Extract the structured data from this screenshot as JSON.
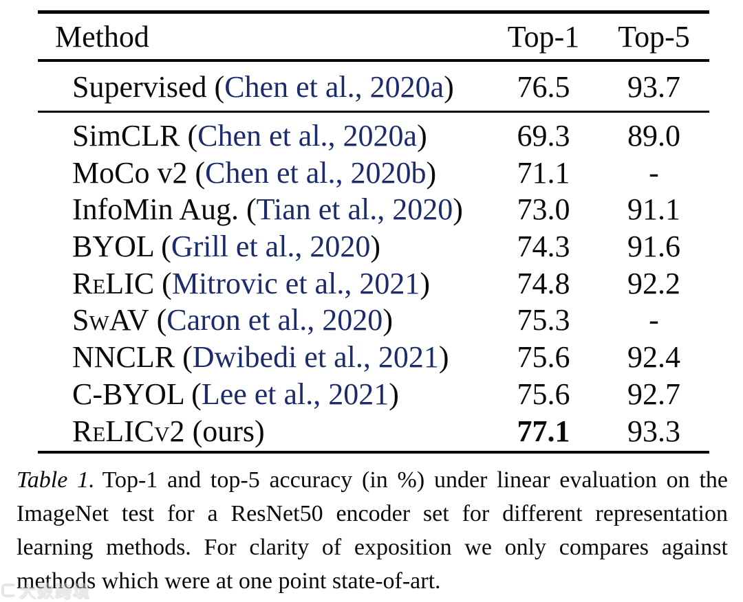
{
  "colors": {
    "text": "#0a0a0a",
    "citation": "#1c2b6b",
    "rule": "#000000",
    "background": "#ffffff",
    "watermark": "#cfd1d4"
  },
  "table": {
    "headers": {
      "method": "Method",
      "top1": "Top-1",
      "top5": "Top-5"
    },
    "punctuation": {
      "cite_open": "(",
      "cite_close": ")",
      "space": " "
    },
    "supervised_row": {
      "method": "Supervised",
      "smallcaps": false,
      "cite": "Chen et al., 2020a",
      "note": "",
      "top1": "76.5",
      "top1_bold": false,
      "top5": "93.7"
    },
    "rows": [
      {
        "method": "SimCLR",
        "smallcaps": false,
        "cite": "Chen et al., 2020a",
        "note": "",
        "top1": "69.3",
        "top1_bold": false,
        "top5": "89.0"
      },
      {
        "method": "MoCo v2",
        "smallcaps": false,
        "cite": "Chen et al., 2020b",
        "note": "",
        "top1": "71.1",
        "top1_bold": false,
        "top5": "-"
      },
      {
        "method": "InfoMin Aug.",
        "smallcaps": false,
        "cite": "Tian et al., 2020",
        "note": "",
        "top1": "73.0",
        "top1_bold": false,
        "top5": "91.1"
      },
      {
        "method": "BYOL",
        "smallcaps": false,
        "cite": "Grill et al., 2020",
        "note": "",
        "top1": "74.3",
        "top1_bold": false,
        "top5": "91.6"
      },
      {
        "method": "ReLIC",
        "smallcaps": true,
        "cite": "Mitrovic et al., 2021",
        "note": "",
        "top1": "74.8",
        "top1_bold": false,
        "top5": "92.2"
      },
      {
        "method": "SwAV",
        "smallcaps": true,
        "cite": "Caron et al., 2020",
        "note": "",
        "top1": "75.3",
        "top1_bold": false,
        "top5": "-"
      },
      {
        "method": "NNCLR",
        "smallcaps": false,
        "cite": "Dwibedi et al., 2021",
        "note": "",
        "top1": "75.6",
        "top1_bold": false,
        "top5": "92.4"
      },
      {
        "method": "C-BYOL",
        "smallcaps": false,
        "cite": "Lee et al., 2021",
        "note": "",
        "top1": "75.6",
        "top1_bold": false,
        "top5": "92.7"
      },
      {
        "method": "ReLICv2",
        "smallcaps": true,
        "cite": "",
        "note": "ours",
        "top1": "77.1",
        "top1_bold": true,
        "top5": "93.3"
      }
    ]
  },
  "caption": {
    "label": "Table 1.",
    "text": "Top-1 and top-5 accuracy (in %) under linear evaluation on the ImageNet test for a ResNet50 encoder set for different representation learning methods. For clarity of exposition we only compares against methods which were at one point state-of-art."
  },
  "watermark": {
    "text": "大数跨境"
  }
}
